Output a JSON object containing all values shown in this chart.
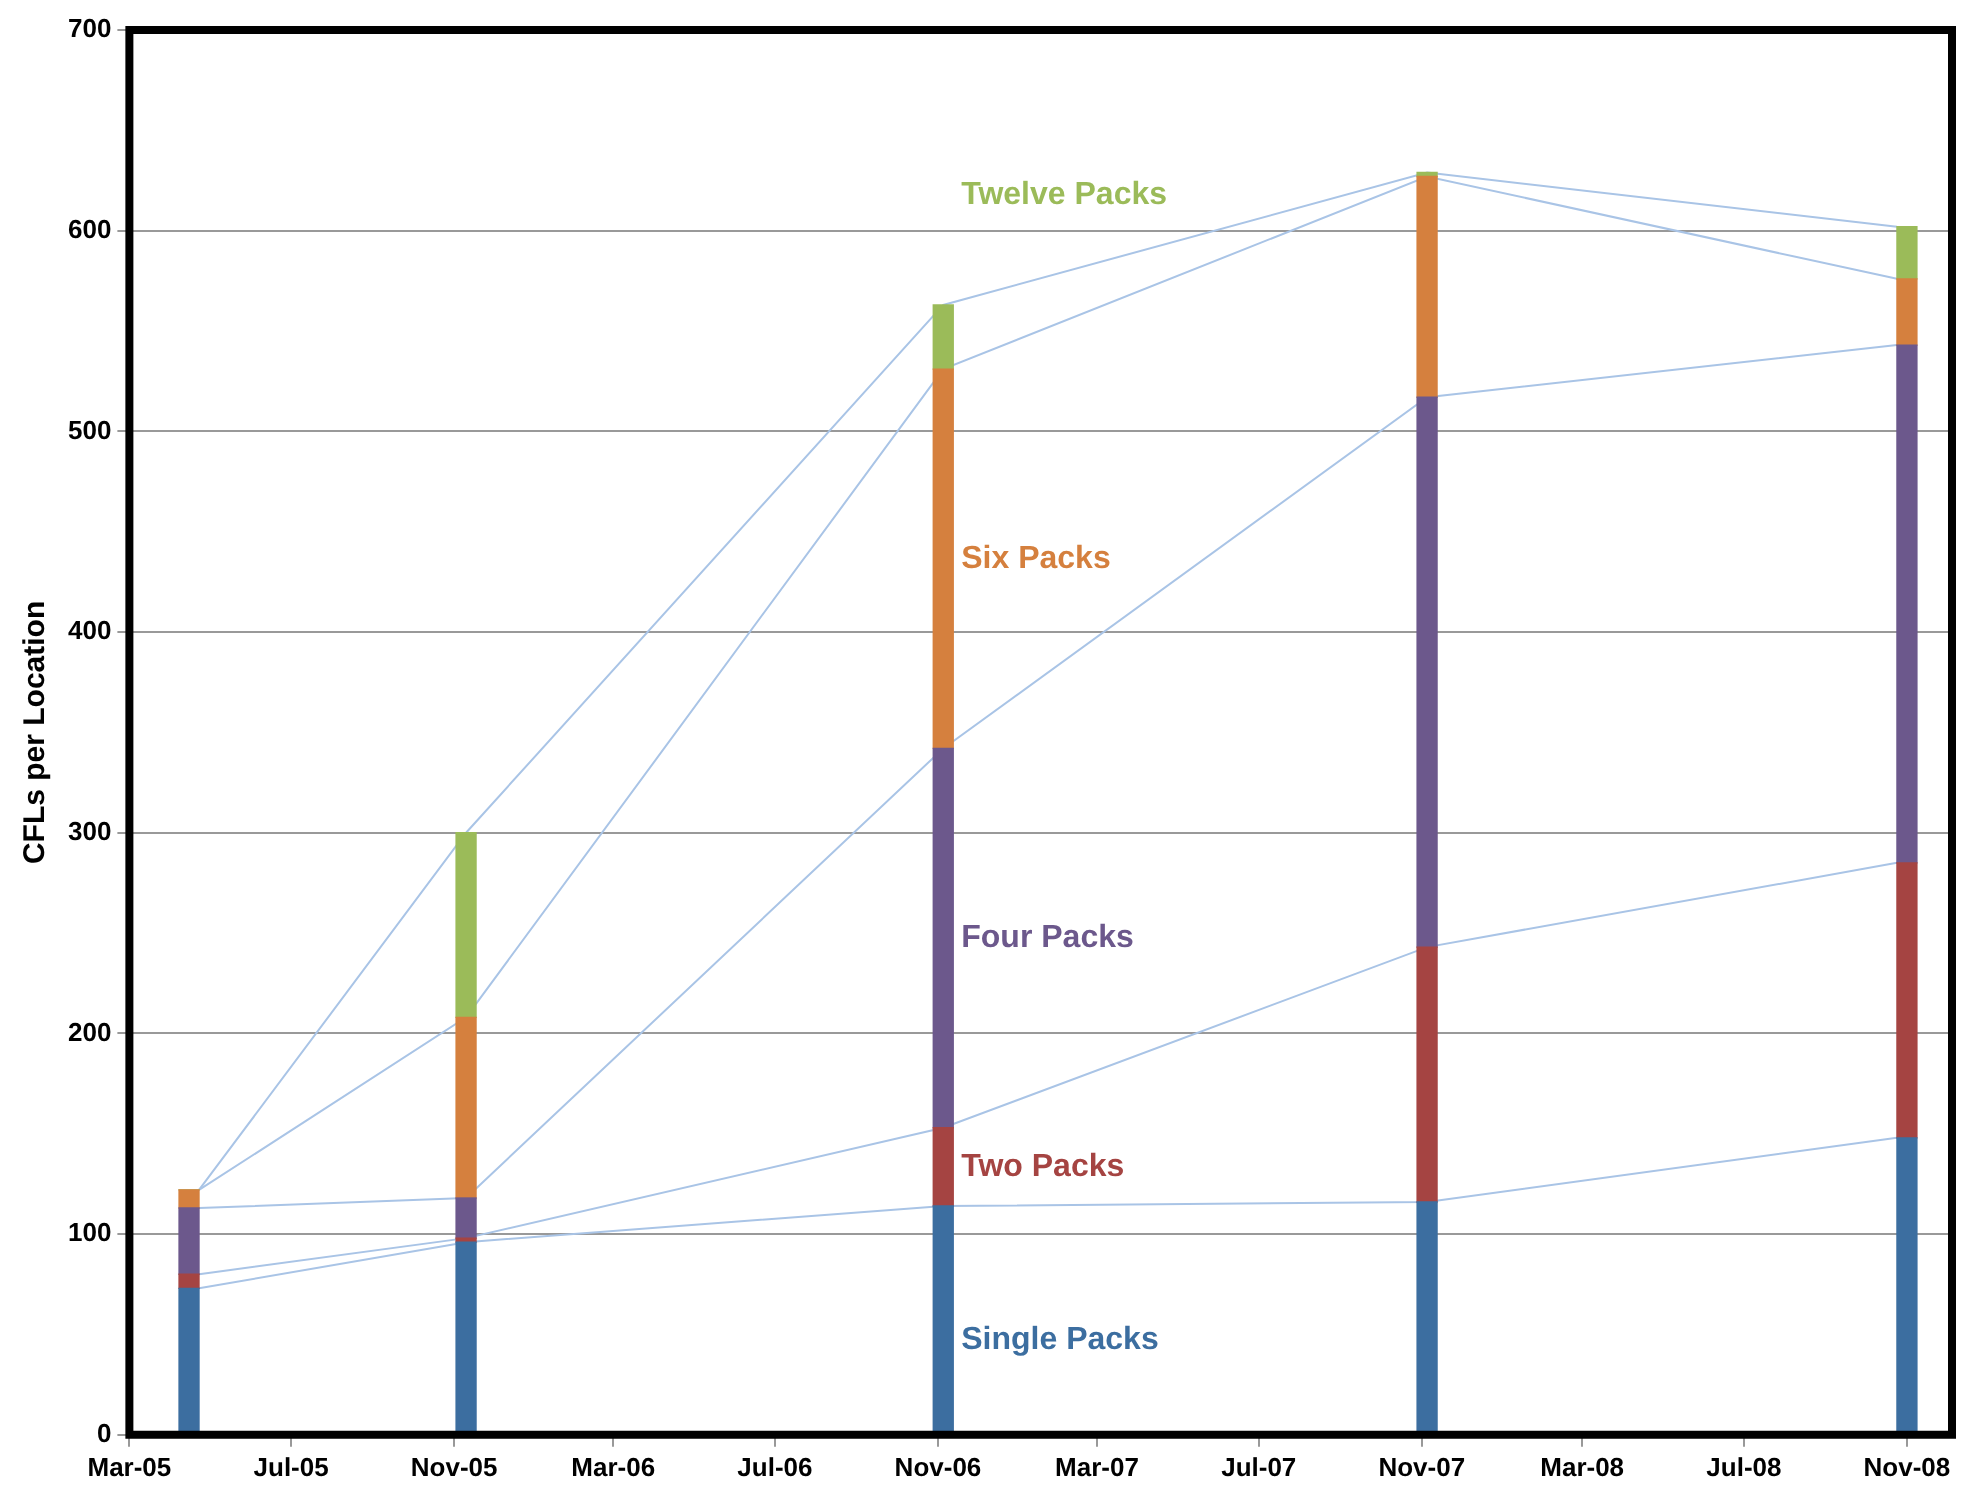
{
  "chart_data": {
    "type": "bar",
    "stacked": true,
    "ylabel": "CFLs per Location",
    "x": [
      "2005-04-15",
      "2005-11-10",
      "2006-11-05",
      "2007-11-05",
      "2008-11-01"
    ],
    "series": [
      {
        "name": "Single Packs",
        "color": "#3c6ea0",
        "values": [
          73,
          96,
          114,
          116,
          148
        ]
      },
      {
        "name": "Two Packs",
        "color": "#a54442",
        "values": [
          7,
          2,
          39,
          127,
          137
        ]
      },
      {
        "name": "Four Packs",
        "color": "#6c588c",
        "values": [
          33,
          20,
          189,
          274,
          258
        ]
      },
      {
        "name": "Six Packs",
        "color": "#d5803e",
        "values": [
          9,
          90,
          189,
          110,
          33
        ]
      },
      {
        "name": "Twelve Packs",
        "color": "#9bbb59",
        "values": [
          0,
          92,
          32,
          2,
          26
        ]
      }
    ],
    "xlim": [
      "2005-03-01",
      "2008-12-05"
    ],
    "xticks": [
      {
        "value": "2005-03-01",
        "label": "Mar-05"
      },
      {
        "value": "2005-07-01",
        "label": "Jul-05"
      },
      {
        "value": "2005-11-01",
        "label": "Nov-05"
      },
      {
        "value": "2006-03-01",
        "label": "Mar-06"
      },
      {
        "value": "2006-07-01",
        "label": "Jul-06"
      },
      {
        "value": "2006-11-01",
        "label": "Nov-06"
      },
      {
        "value": "2007-03-01",
        "label": "Mar-07"
      },
      {
        "value": "2007-07-01",
        "label": "Jul-07"
      },
      {
        "value": "2007-11-01",
        "label": "Nov-07"
      },
      {
        "value": "2008-03-01",
        "label": "Mar-08"
      },
      {
        "value": "2008-07-01",
        "label": "Jul-08"
      },
      {
        "value": "2008-11-01",
        "label": "Nov-08"
      }
    ],
    "ylim": [
      0,
      700
    ],
    "yticks": [
      0,
      100,
      200,
      300,
      400,
      500,
      600,
      700
    ],
    "grid": "y",
    "legend": false
  }
}
